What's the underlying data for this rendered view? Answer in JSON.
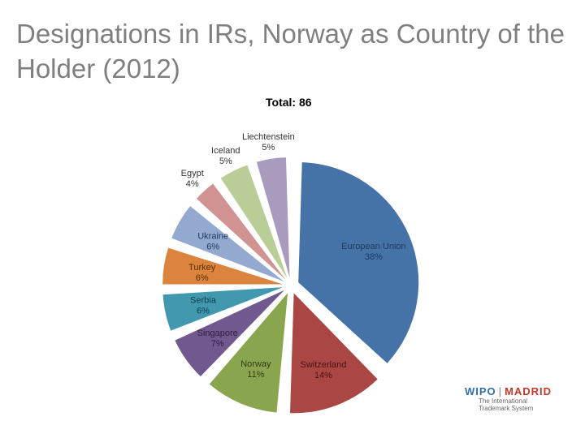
{
  "title": "Designations in IRs, Norway as Country of the Holder (2012)",
  "total_label": "Total:",
  "total_value": "86",
  "logo": {
    "wipo": "WIPO",
    "separator": "|",
    "madrid": "MADRID",
    "line1": "The International",
    "line2": "Trademark System"
  },
  "chart_data": {
    "type": "pie",
    "title": "Designations in IRs, Norway as Country of the Holder (2012)",
    "total": 86,
    "slices": [
      {
        "label": "European Union",
        "percent": 38,
        "display": "38%",
        "color": "#4572a7",
        "label_color": "#1f3a5f"
      },
      {
        "label": "Switzerland",
        "percent": 14,
        "display": "14%",
        "color": "#aa4643",
        "label_color": "#4a1412"
      },
      {
        "label": "Norway",
        "percent": 11,
        "display": "11%",
        "color": "#89a54e",
        "label_color": "#2f3d14"
      },
      {
        "label": "Singapore",
        "percent": 7,
        "display": "7%",
        "color": "#71588f",
        "label_color": "#2c1f40"
      },
      {
        "label": "Serbia",
        "percent": 6,
        "display": "6%",
        "color": "#4198af",
        "label_color": "#12404d"
      },
      {
        "label": "Turkey",
        "percent": 6,
        "display": "6%",
        "color": "#db843d",
        "label_color": "#5a2e08"
      },
      {
        "label": "Ukraine",
        "percent": 6,
        "display": "6%",
        "color": "#93a9cf",
        "label_color": "#1f3a5f"
      },
      {
        "label": "Egypt",
        "percent": 4,
        "display": "4%",
        "color": "#d19392",
        "label_color": "#333333"
      },
      {
        "label": "Iceland",
        "percent": 5,
        "display": "5%",
        "color": "#b9cd96",
        "label_color": "#333333"
      },
      {
        "label": "Liechtenstein",
        "percent": 5,
        "display": "5%",
        "color": "#a99bbd",
        "label_color": "#333333"
      }
    ],
    "legend": "none"
  }
}
